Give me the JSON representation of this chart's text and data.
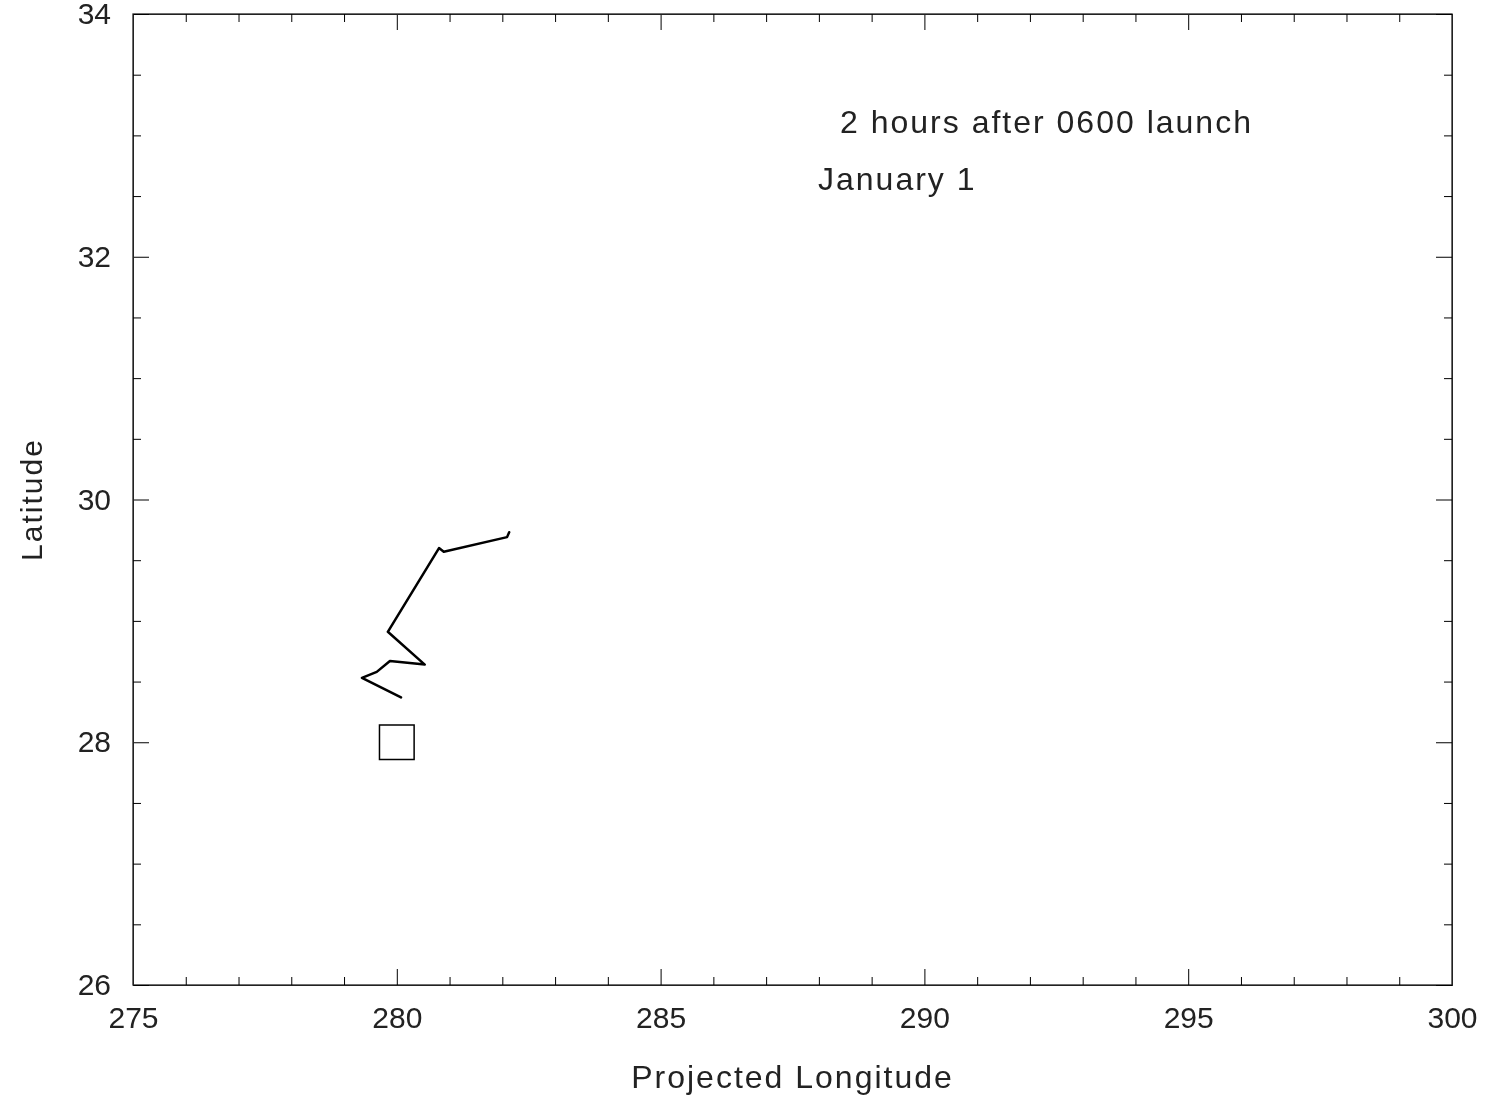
{
  "chart_data": {
    "type": "line",
    "xlabel": "Projected Longitude",
    "ylabel": "Latitude",
    "annotations": [
      "2 hours after 0600 launch",
      "January 1"
    ],
    "xlim": [
      275,
      300
    ],
    "ylim": [
      26,
      34
    ],
    "xticks": [
      275,
      {
        "value": 276,
        "label": null
      },
      {
        "value": 277,
        "label": null
      },
      {
        "value": 278,
        "label": null
      },
      {
        "value": 279,
        "label": null
      },
      280,
      {
        "value": 281,
        "label": null
      },
      {
        "value": 282,
        "label": null
      },
      {
        "value": 283,
        "label": null
      },
      {
        "value": 284,
        "label": null
      },
      285,
      {
        "value": 286,
        "label": null
      },
      {
        "value": 287,
        "label": null
      },
      {
        "value": 288,
        "label": null
      },
      {
        "value": 289,
        "label": null
      },
      290,
      {
        "value": 291,
        "label": null
      },
      {
        "value": 292,
        "label": null
      },
      {
        "value": 293,
        "label": null
      },
      {
        "value": 294,
        "label": null
      },
      295,
      {
        "value": 296,
        "label": null
      },
      {
        "value": 297,
        "label": null
      },
      {
        "value": 298,
        "label": null
      },
      {
        "value": 299,
        "label": null
      },
      300
    ],
    "yticks": [
      26,
      {
        "value": 26.5,
        "label": null
      },
      {
        "value": 27,
        "label": null
      },
      {
        "value": 27.5,
        "label": null
      },
      28,
      {
        "value": 28.5,
        "label": null
      },
      {
        "value": 29,
        "label": null
      },
      {
        "value": 29.5,
        "label": null
      },
      30,
      {
        "value": 30.5,
        "label": null
      },
      {
        "value": 31,
        "label": null
      },
      {
        "value": 31.5,
        "label": null
      },
      32,
      {
        "value": 32.5,
        "label": null
      },
      {
        "value": 33,
        "label": null
      },
      {
        "value": 33.5,
        "label": null
      },
      34
    ],
    "series": [
      {
        "color": "#000000",
        "x": [
          280.08,
          279.34,
          279.62,
          279.87,
          280.53,
          279.83,
          280.8,
          280.89,
          282.09,
          282.13
        ],
        "values": [
          28.37,
          28.53,
          28.58,
          28.67,
          28.64,
          28.91,
          29.6,
          29.57,
          29.69,
          29.73
        ]
      },
      {
        "type": "scatter",
        "marker": "square",
        "color": "#000000",
        "x": [
          280
        ],
        "values": [
          28
        ]
      }
    ]
  }
}
